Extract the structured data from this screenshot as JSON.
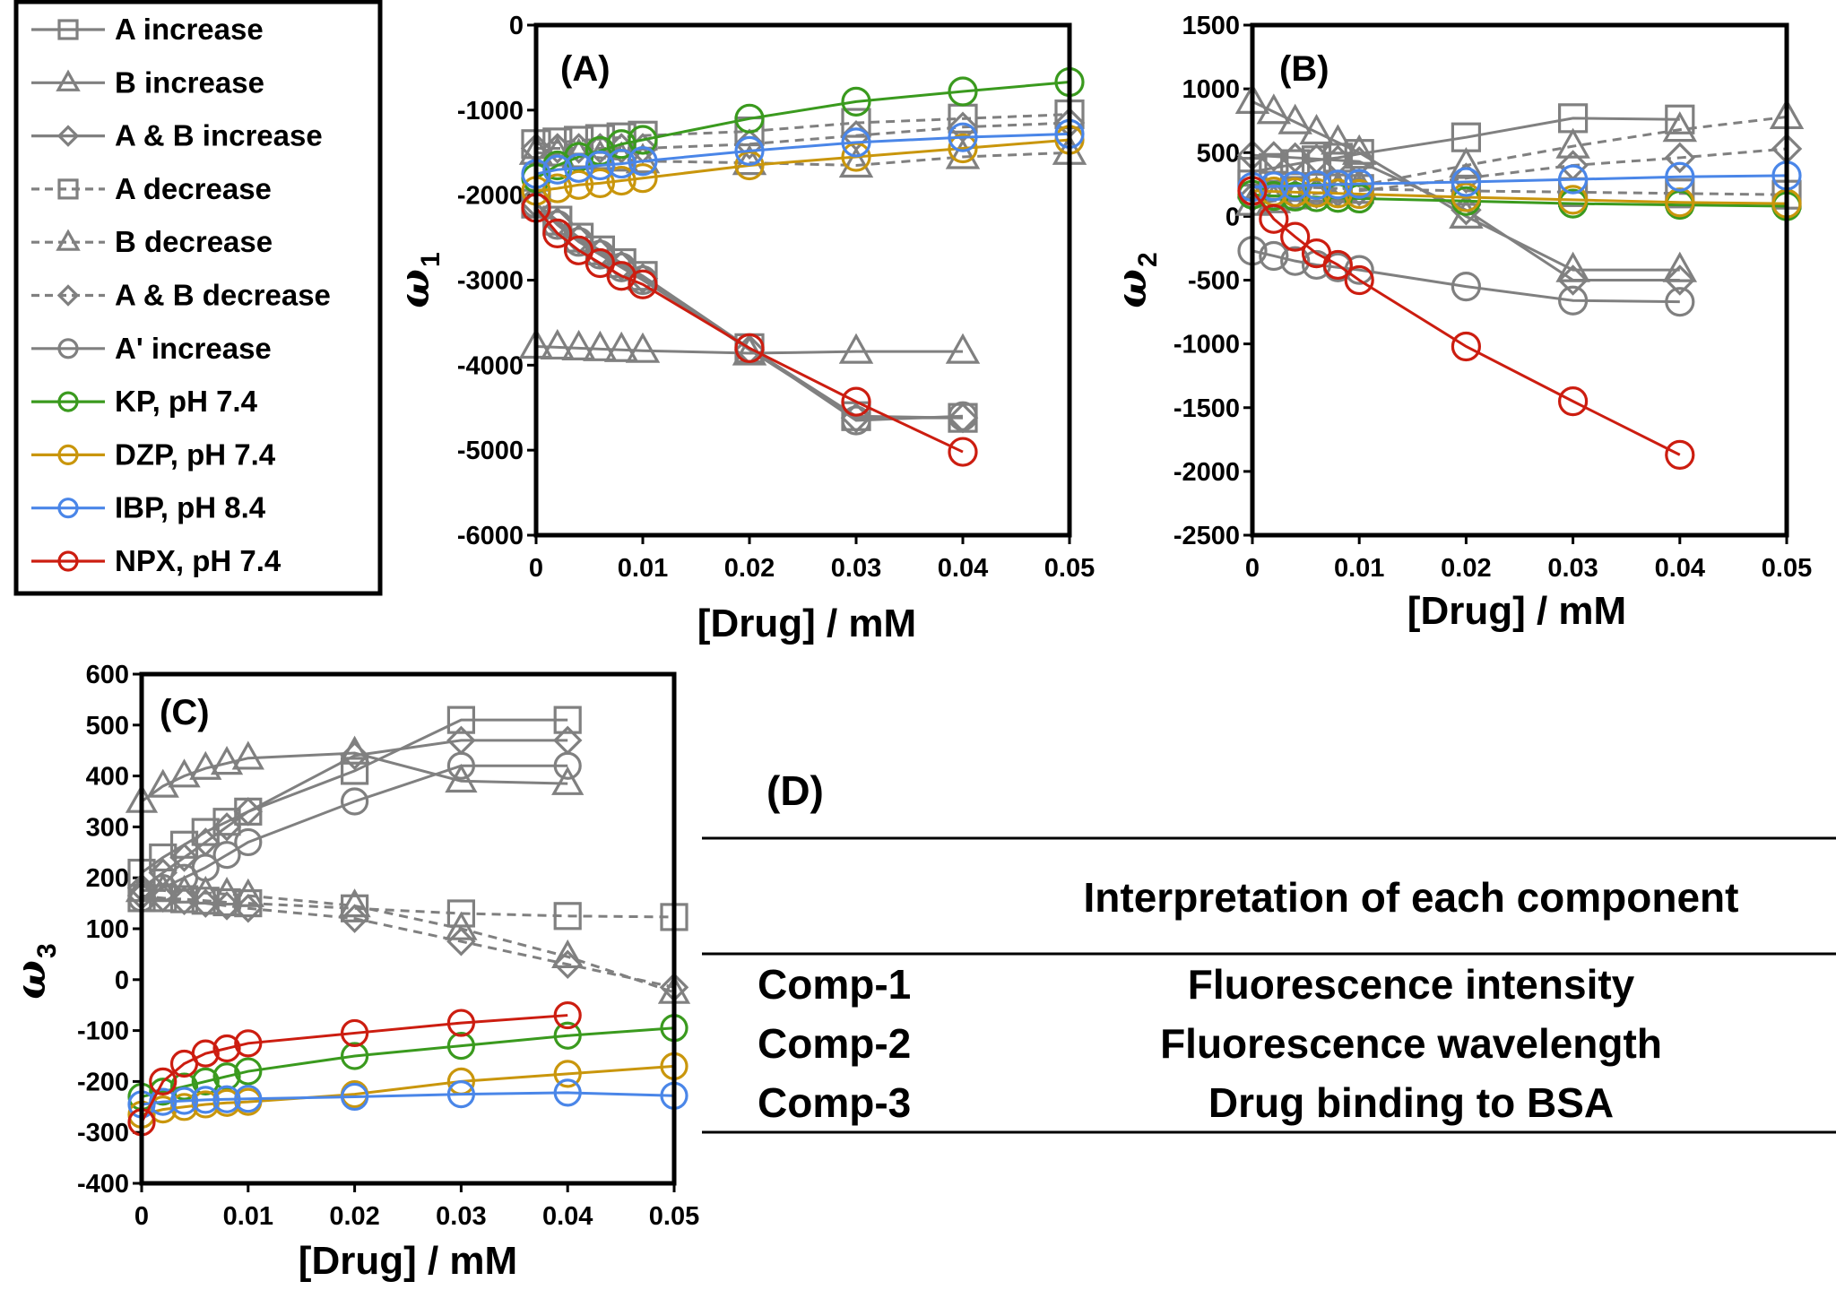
{
  "legend": [
    {
      "label": "A increase",
      "color": "#808080",
      "marker": "square",
      "dash": false
    },
    {
      "label": "B increase",
      "color": "#808080",
      "marker": "triangle",
      "dash": false
    },
    {
      "label": "A & B increase",
      "color": "#808080",
      "marker": "diamond",
      "dash": false
    },
    {
      "label": "A decrease",
      "color": "#808080",
      "marker": "square",
      "dash": true
    },
    {
      "label": "B decrease",
      "color": "#808080",
      "marker": "triangle",
      "dash": true
    },
    {
      "label": "A & B decrease",
      "color": "#808080",
      "marker": "diamond",
      "dash": true
    },
    {
      "label": "A' increase",
      "color": "#808080",
      "marker": "circle",
      "dash": false
    },
    {
      "label": "KP, pH 7.4",
      "color": "#3a9a1e",
      "marker": "circle",
      "dash": false
    },
    {
      "label": "DZP, pH 7.4",
      "color": "#c9960c",
      "marker": "circle",
      "dash": false
    },
    {
      "label": "IBP, pH 8.4",
      "color": "#4a86e8",
      "marker": "circle",
      "dash": false
    },
    {
      "label": "NPX, pH 7.4",
      "color": "#cc1d10",
      "marker": "circle",
      "dash": false
    }
  ],
  "chart_data": [
    {
      "type": "line",
      "panel": "(A)",
      "xlabel": "[Drug] / mM",
      "ylabel": "ω",
      "ylabel_sub": "1",
      "xlim": [
        0,
        0.05
      ],
      "ylim": [
        -6000,
        0
      ],
      "xticks": [
        0,
        0.01,
        0.02,
        0.03,
        0.04,
        0.05
      ],
      "xtick_labels": [
        "0",
        "0.01",
        "0.02",
        "0.03",
        "0.04",
        "0.05"
      ],
      "yticks": [
        -6000,
        -5000,
        -4000,
        -3000,
        -2000,
        -1000,
        0
      ],
      "ytick_labels": [
        "-6000",
        "-5000",
        "-4000",
        "-3000",
        "-2000",
        "-1000",
        "0"
      ],
      "series": [
        {
          "name": "A increase",
          "x": [
            0,
            0.002,
            0.004,
            0.006,
            0.008,
            0.01,
            0.02,
            0.03,
            0.04
          ],
          "y": [
            -2100,
            -2300,
            -2500,
            -2650,
            -2800,
            -2950,
            -3800,
            -4600,
            -4620
          ]
        },
        {
          "name": "B increase",
          "x": [
            0,
            0.002,
            0.004,
            0.006,
            0.008,
            0.01,
            0.02,
            0.03,
            0.04
          ],
          "y": [
            -3780,
            -3790,
            -3800,
            -3810,
            -3820,
            -3830,
            -3860,
            -3840,
            -3840
          ]
        },
        {
          "name": "A & B increase",
          "x": [
            0,
            0.002,
            0.004,
            0.006,
            0.008,
            0.01,
            0.02,
            0.03,
            0.04
          ],
          "y": [
            -2100,
            -2320,
            -2520,
            -2680,
            -2830,
            -2980,
            -3820,
            -4620,
            -4620
          ]
        },
        {
          "name": "A decrease",
          "x": [
            0,
            0.002,
            0.004,
            0.006,
            0.008,
            0.01,
            0.02,
            0.03,
            0.04,
            0.05
          ],
          "y": [
            -1400,
            -1380,
            -1360,
            -1340,
            -1320,
            -1300,
            -1250,
            -1150,
            -1100,
            -1050
          ]
        },
        {
          "name": "B decrease",
          "x": [
            0,
            0.002,
            0.004,
            0.006,
            0.008,
            0.01,
            0.02,
            0.03,
            0.04,
            0.05
          ],
          "y": [
            -1500,
            -1520,
            -1540,
            -1560,
            -1580,
            -1600,
            -1620,
            -1650,
            -1550,
            -1500
          ]
        },
        {
          "name": "A & B decrease",
          "x": [
            0,
            0.002,
            0.004,
            0.006,
            0.008,
            0.01,
            0.02,
            0.03,
            0.04,
            0.05
          ],
          "y": [
            -1450,
            -1450,
            -1450,
            -1450,
            -1450,
            -1450,
            -1400,
            -1300,
            -1200,
            -1150
          ]
        },
        {
          "name": "A' increase",
          "x": [
            0,
            0.002,
            0.004,
            0.006,
            0.008,
            0.01,
            0.02,
            0.03,
            0.04
          ],
          "y": [
            -2100,
            -2350,
            -2550,
            -2700,
            -2850,
            -3000,
            -3800,
            -4650,
            -4600
          ]
        },
        {
          "name": "KP, pH 7.4",
          "x": [
            0,
            0.002,
            0.004,
            0.006,
            0.008,
            0.01,
            0.02,
            0.03,
            0.04,
            0.05
          ],
          "y": [
            -1800,
            -1650,
            -1550,
            -1480,
            -1400,
            -1350,
            -1100,
            -900,
            -780,
            -670
          ]
        },
        {
          "name": "DZP, pH 7.4",
          "x": [
            0,
            0.002,
            0.004,
            0.006,
            0.008,
            0.01,
            0.02,
            0.03,
            0.04,
            0.05
          ],
          "y": [
            -1950,
            -1920,
            -1880,
            -1860,
            -1830,
            -1800,
            -1650,
            -1550,
            -1450,
            -1350
          ]
        },
        {
          "name": "IBP, pH 8.4",
          "x": [
            0,
            0.002,
            0.004,
            0.006,
            0.008,
            0.01,
            0.02,
            0.03,
            0.04,
            0.05
          ],
          "y": [
            -1750,
            -1700,
            -1680,
            -1650,
            -1630,
            -1600,
            -1480,
            -1380,
            -1320,
            -1280
          ]
        },
        {
          "name": "NPX, pH 7.4",
          "x": [
            0,
            0.002,
            0.004,
            0.006,
            0.008,
            0.01,
            0.02,
            0.03,
            0.04
          ],
          "y": [
            -2150,
            -2450,
            -2650,
            -2800,
            -2950,
            -3050,
            -3800,
            -4430,
            -5020
          ]
        }
      ]
    },
    {
      "type": "line",
      "panel": "(B)",
      "xlabel": "[Drug] / mM",
      "ylabel": "ω",
      "ylabel_sub": "2",
      "xlim": [
        0,
        0.05
      ],
      "ylim": [
        -2500,
        1500
      ],
      "xticks": [
        0,
        0.01,
        0.02,
        0.03,
        0.04,
        0.05
      ],
      "xtick_labels": [
        "0",
        "0.01",
        "0.02",
        "0.03",
        "0.04",
        "0.05"
      ],
      "yticks": [
        -2500,
        -2000,
        -1500,
        -1000,
        -500,
        0,
        500,
        1000,
        1500
      ],
      "ytick_labels": [
        "-2500",
        "-2000",
        "-1500",
        "-1000",
        "-500",
        "0",
        "500",
        "1000",
        "1500"
      ],
      "series": [
        {
          "name": "A increase",
          "x": [
            0,
            0.002,
            0.004,
            0.006,
            0.008,
            0.01,
            0.02,
            0.03,
            0.04
          ],
          "y": [
            350,
            380,
            410,
            440,
            460,
            490,
            620,
            770,
            760
          ]
        },
        {
          "name": "B increase",
          "x": [
            0,
            0.002,
            0.004,
            0.006,
            0.008,
            0.01,
            0.02,
            0.03,
            0.04
          ],
          "y": [
            900,
            820,
            740,
            660,
            580,
            500,
            0,
            -420,
            -420
          ]
        },
        {
          "name": "A & B increase",
          "x": [
            0,
            0.002,
            0.004,
            0.006,
            0.008,
            0.01,
            0.02,
            0.03,
            0.04
          ],
          "y": [
            480,
            470,
            460,
            450,
            440,
            430,
            50,
            -500,
            -500
          ]
        },
        {
          "name": "A decrease",
          "x": [
            0,
            0.002,
            0.004,
            0.006,
            0.008,
            0.01,
            0.02,
            0.03,
            0.04,
            0.05
          ],
          "y": [
            250,
            240,
            230,
            225,
            220,
            215,
            200,
            190,
            180,
            170
          ]
        },
        {
          "name": "B decrease",
          "x": [
            0,
            0.002,
            0.004,
            0.006,
            0.008,
            0.01,
            0.02,
            0.03,
            0.04,
            0.05
          ],
          "y": [
            100,
            120,
            150,
            180,
            210,
            240,
            400,
            550,
            680,
            780
          ]
        },
        {
          "name": "A & B decrease",
          "x": [
            0,
            0.002,
            0.004,
            0.006,
            0.008,
            0.01,
            0.02,
            0.03,
            0.04,
            0.05
          ],
          "y": [
            150,
            160,
            170,
            180,
            190,
            200,
            300,
            400,
            460,
            530
          ]
        },
        {
          "name": "A' increase",
          "x": [
            0,
            0.002,
            0.004,
            0.006,
            0.008,
            0.01,
            0.02,
            0.03,
            0.04
          ],
          "y": [
            -270,
            -310,
            -350,
            -380,
            -400,
            -420,
            -550,
            -660,
            -670
          ]
        },
        {
          "name": "KP, pH 7.4",
          "x": [
            0,
            0.002,
            0.004,
            0.006,
            0.008,
            0.01,
            0.02,
            0.03,
            0.04,
            0.05
          ],
          "y": [
            170,
            160,
            155,
            150,
            145,
            140,
            120,
            100,
            90,
            80
          ]
        },
        {
          "name": "DZP, pH 7.4",
          "x": [
            0,
            0.002,
            0.004,
            0.006,
            0.008,
            0.01,
            0.02,
            0.03,
            0.04,
            0.05
          ],
          "y": [
            200,
            195,
            190,
            185,
            180,
            175,
            150,
            130,
            110,
            100
          ]
        },
        {
          "name": "IBP, pH 8.4",
          "x": [
            0,
            0.002,
            0.004,
            0.006,
            0.008,
            0.01,
            0.02,
            0.03,
            0.04,
            0.05
          ],
          "y": [
            230,
            235,
            240,
            245,
            250,
            255,
            270,
            290,
            310,
            320
          ]
        },
        {
          "name": "NPX, pH 7.4",
          "x": [
            0,
            0.002,
            0.004,
            0.006,
            0.008,
            0.01,
            0.02,
            0.03,
            0.04
          ],
          "y": [
            200,
            -20,
            -160,
            -290,
            -380,
            -500,
            -1020,
            -1450,
            -1870
          ]
        }
      ]
    },
    {
      "type": "line",
      "panel": "(C)",
      "xlabel": "[Drug] / mM",
      "ylabel": "ω",
      "ylabel_sub": "3",
      "xlim": [
        0,
        0.05
      ],
      "ylim": [
        -400,
        600
      ],
      "xticks": [
        0,
        0.01,
        0.02,
        0.03,
        0.04,
        0.05
      ],
      "xtick_labels": [
        "0",
        "0.01",
        "0.02",
        "0.03",
        "0.04",
        "0.05"
      ],
      "yticks": [
        -400,
        -300,
        -200,
        -100,
        0,
        100,
        200,
        300,
        400,
        500,
        600
      ],
      "ytick_labels": [
        "-400",
        "-300",
        "-200",
        "-100",
        "0",
        "100",
        "200",
        "300",
        "400",
        "500",
        "600"
      ],
      "series": [
        {
          "name": "A increase",
          "x": [
            0,
            0.002,
            0.004,
            0.006,
            0.008,
            0.01,
            0.02,
            0.03,
            0.04
          ],
          "y": [
            210,
            240,
            265,
            290,
            310,
            330,
            410,
            510,
            510
          ]
        },
        {
          "name": "B increase",
          "x": [
            0,
            0.002,
            0.004,
            0.006,
            0.008,
            0.01,
            0.02,
            0.03,
            0.04
          ],
          "y": [
            350,
            380,
            400,
            415,
            425,
            435,
            445,
            390,
            385
          ]
        },
        {
          "name": "A & B increase",
          "x": [
            0,
            0.002,
            0.004,
            0.006,
            0.008,
            0.01,
            0.02,
            0.03,
            0.04
          ],
          "y": [
            180,
            210,
            240,
            270,
            300,
            330,
            440,
            470,
            470
          ]
        },
        {
          "name": "A decrease",
          "x": [
            0,
            0.002,
            0.004,
            0.006,
            0.008,
            0.01,
            0.02,
            0.03,
            0.04,
            0.05
          ],
          "y": [
            160,
            160,
            158,
            155,
            152,
            150,
            140,
            130,
            125,
            123
          ]
        },
        {
          "name": "B decrease",
          "x": [
            0,
            0.002,
            0.004,
            0.006,
            0.008,
            0.01,
            0.02,
            0.03,
            0.04,
            0.05
          ],
          "y": [
            175,
            175,
            172,
            170,
            168,
            165,
            145,
            100,
            45,
            -25
          ]
        },
        {
          "name": "A & B decrease",
          "x": [
            0,
            0.002,
            0.004,
            0.006,
            0.008,
            0.01,
            0.02,
            0.03,
            0.04,
            0.05
          ],
          "y": [
            165,
            160,
            155,
            150,
            145,
            140,
            120,
            75,
            30,
            -15
          ]
        },
        {
          "name": "A' increase",
          "x": [
            0,
            0.002,
            0.004,
            0.006,
            0.008,
            0.01,
            0.02,
            0.03,
            0.04
          ],
          "y": [
            160,
            180,
            200,
            220,
            245,
            270,
            350,
            420,
            420
          ]
        },
        {
          "name": "KP, pH 7.4",
          "x": [
            0,
            0.002,
            0.004,
            0.006,
            0.008,
            0.01,
            0.02,
            0.03,
            0.04,
            0.05
          ],
          "y": [
            -230,
            -220,
            -210,
            -200,
            -190,
            -180,
            -150,
            -130,
            -110,
            -95
          ]
        },
        {
          "name": "DZP, pH 7.4",
          "x": [
            0,
            0.002,
            0.004,
            0.006,
            0.008,
            0.01,
            0.02,
            0.03,
            0.04,
            0.05
          ],
          "y": [
            -265,
            -255,
            -250,
            -245,
            -242,
            -240,
            -225,
            -200,
            -185,
            -170
          ]
        },
        {
          "name": "IBP, pH 8.4",
          "x": [
            0,
            0.002,
            0.004,
            0.006,
            0.008,
            0.01,
            0.02,
            0.03,
            0.04,
            0.05
          ],
          "y": [
            -245,
            -240,
            -238,
            -236,
            -235,
            -234,
            -230,
            -225,
            -222,
            -228
          ]
        },
        {
          "name": "NPX, pH 7.4",
          "x": [
            0,
            0.002,
            0.004,
            0.006,
            0.008,
            0.01,
            0.02,
            0.03,
            0.04
          ],
          "y": [
            -280,
            -200,
            -165,
            -145,
            -135,
            -125,
            -105,
            -85,
            -70
          ]
        }
      ]
    }
  ],
  "table": {
    "label": "(D)",
    "header": "Interpretation of each component",
    "rows": [
      {
        "component": "Comp-1",
        "interpretation": "Fluorescence intensity"
      },
      {
        "component": "Comp-2",
        "interpretation": "Fluorescence wavelength"
      },
      {
        "component": "Comp-3",
        "interpretation": "Drug binding to BSA"
      }
    ]
  }
}
